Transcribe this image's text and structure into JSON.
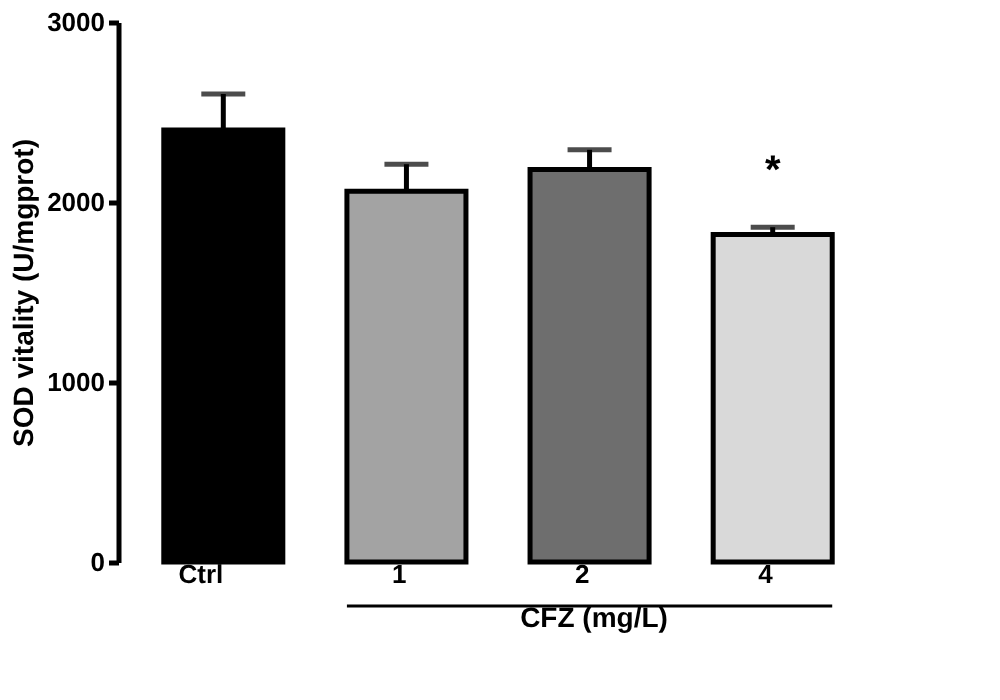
{
  "chart_data": {
    "type": "bar",
    "xlabel": "CFZ (mg/L)",
    "ylabel": "SOD vitality (U/mgprot)",
    "categories": [
      "Ctrl",
      "1",
      "2",
      "4"
    ],
    "values": [
      2400,
      2060,
      2180,
      1820
    ],
    "colors": [
      "#000000",
      "#a3a3a3",
      "#6e6e6e",
      "#d9d9d9"
    ],
    "errors": [
      200,
      150,
      110,
      40
    ],
    "ylim": [
      0,
      3000
    ],
    "yticks": [
      0,
      1000,
      2000,
      3000
    ],
    "grid": false,
    "annotations": [
      "*"
    ]
  }
}
